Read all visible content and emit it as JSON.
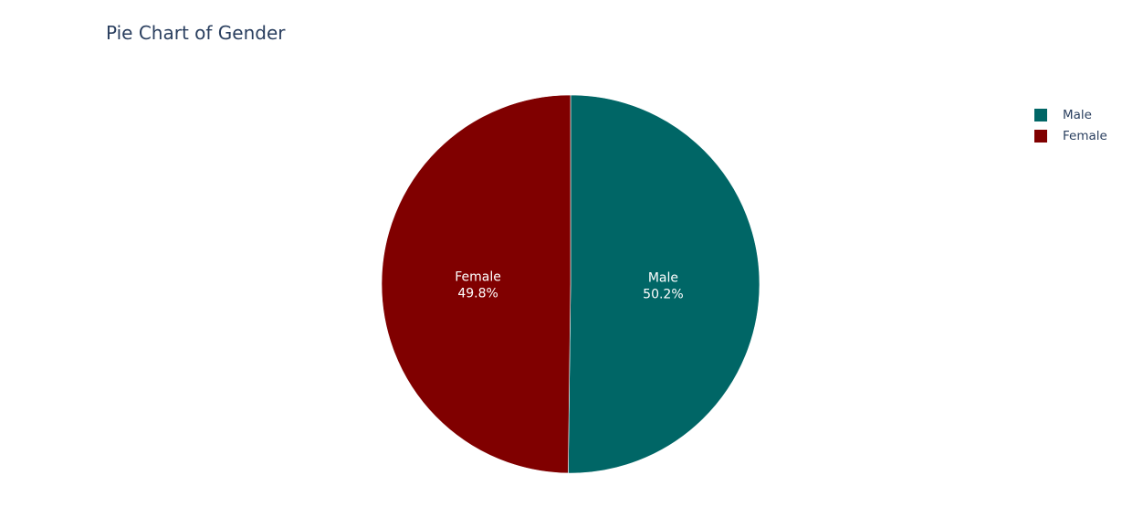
{
  "chart_data": {
    "type": "pie",
    "title": "Pie Chart of Gender",
    "categories": [
      "Male",
      "Female"
    ],
    "values": [
      50.2,
      49.8
    ],
    "value_format": "percent",
    "colors": [
      "#006666",
      "#800000"
    ],
    "legend_position": "top-right",
    "text_color": "#ffffff"
  }
}
